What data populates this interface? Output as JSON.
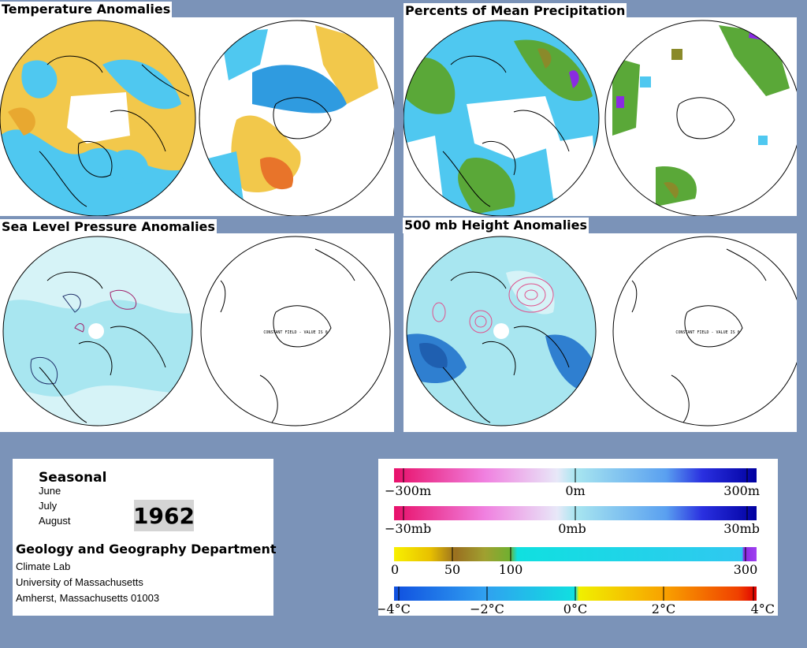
{
  "panels": {
    "temperature": {
      "title": "Temperature Anomalies"
    },
    "precipitation": {
      "title": "Percents of Mean Precipitation"
    },
    "pressure": {
      "title": "Sea Level Pressure Anomalies",
      "southern_note": "CONSTANT FIELD - VALUE IS 0"
    },
    "height": {
      "title": "500 mb Height Anomalies",
      "southern_note": "CONSTANT FIELD - VALUE IS 0"
    }
  },
  "info": {
    "heading": "Seasonal",
    "months": [
      "June",
      "July",
      "August"
    ],
    "year": "1962",
    "department": "Geology and Geography Department",
    "lines": [
      "Climate Lab",
      "University of Massachusetts",
      "Amherst, Massachusetts 01003"
    ]
  },
  "legend": {
    "height_scale": {
      "labels": [
        "−300m",
        "0m",
        "300m"
      ],
      "min": -300,
      "max": 300
    },
    "pressure_scale": {
      "labels": [
        "−30mb",
        "0mb",
        "30mb"
      ],
      "min": -30,
      "max": 30
    },
    "precip_scale": {
      "labels": [
        "0",
        "50",
        "100",
        "300"
      ],
      "min": 0,
      "max": 300
    },
    "temp_scale": {
      "labels": [
        "−4°C",
        "−2°C",
        "0°C",
        "2°C",
        "4°C"
      ],
      "min": -4,
      "max": 4
    }
  },
  "colors": {
    "background": "#7b93b8",
    "temp_warm": "#f2c84b",
    "temp_cool": "#4fc8f0",
    "temp_hot": "#e8742a",
    "temp_cold": "#2f9be0",
    "precip_green": "#5aa838",
    "precip_olive": "#8a8a2a",
    "precip_purple": "#8a2be2",
    "pressure_light": "#d6f3f7",
    "pressure_mid": "#a8e6f0",
    "height_dark": "#2f7fd0",
    "height_pink": "#e0508c"
  }
}
